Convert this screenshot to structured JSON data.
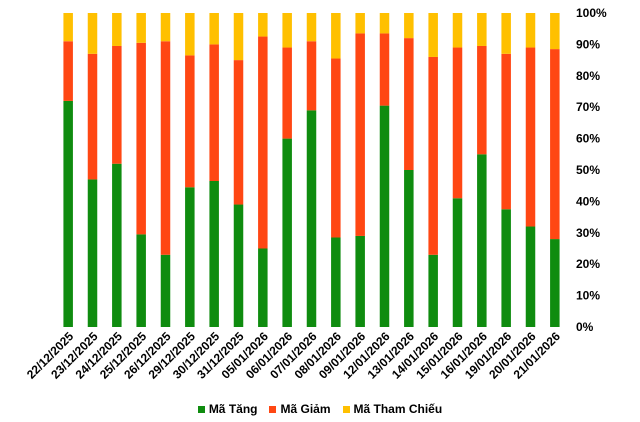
{
  "chart_data": {
    "type": "bar",
    "stacked": true,
    "normalized": true,
    "categories": [
      "22/12/2025",
      "23/12/2025",
      "24/12/2025",
      "25/12/2025",
      "26/12/2025",
      "29/12/2025",
      "30/12/2025",
      "31/12/2025",
      "05/01/2026",
      "06/01/2026",
      "07/01/2026",
      "08/01/2026",
      "09/01/2026",
      "12/01/2026",
      "13/01/2026",
      "14/01/2026",
      "15/01/2026",
      "16/01/2026",
      "19/01/2026",
      "20/01/2026",
      "21/01/2026"
    ],
    "series": [
      {
        "name": "Mã Tăng",
        "color": "#0f8c0f",
        "values": [
          72,
          47,
          52,
          29.5,
          23,
          44.5,
          46.5,
          39,
          25,
          60,
          69,
          28.5,
          29,
          70.5,
          50,
          23,
          41,
          55,
          37.5,
          32,
          28
        ]
      },
      {
        "name": "Mã Giảm",
        "color": "#ff4713",
        "values": [
          19,
          40,
          37.5,
          61,
          68,
          42,
          43.5,
          46,
          67.5,
          29,
          22,
          57,
          64.5,
          23,
          42,
          63,
          48,
          34.5,
          49.5,
          57,
          60.5
        ]
      },
      {
        "name": "Mã Tham Chiếu",
        "color": "#ffc000",
        "values": [
          9,
          13,
          10.5,
          9.5,
          9,
          13.5,
          10,
          15,
          7.5,
          11,
          9,
          14.5,
          6.5,
          6.5,
          8,
          14,
          11,
          10.5,
          13,
          11,
          11.5
        ]
      }
    ],
    "y_ticks": [
      "0%",
      "10%",
      "20%",
      "30%",
      "40%",
      "50%",
      "60%",
      "70%",
      "80%",
      "90%",
      "100%"
    ],
    "ylim": [
      0,
      100
    ],
    "legend_position": "bottom"
  }
}
